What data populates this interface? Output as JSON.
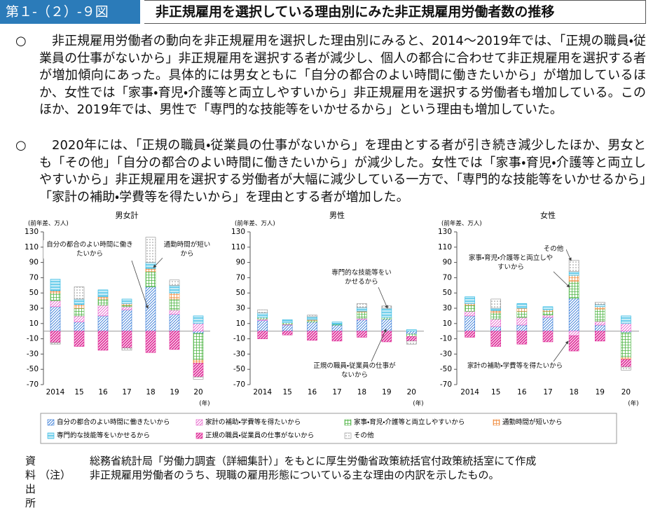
{
  "header": {
    "figure_number": "第１-（２）-９図",
    "title": "非正規雇用を選択している理由別にみた非正規雇用労働者数の推移"
  },
  "bullets": [
    {
      "marker": "○",
      "text": "非正規雇用労働者の動向を非正規雇用を選択した理由別にみると、2014～2019年では、「正規の職員・従業員の仕事がないから」非正規雇用を選択する者が減少し、個人の都合に合わせて非正規雇用を選択する者が増加傾向にあった。具体的には男女ともに「自分の都合のよい時間に働きたいから」が増加しているほか、女性では「家事・育児・介護等と両立しやすいから」非正規雇用を選択する労働者も増加している。このほか、2019年では、男性で「専門的な技能等をいかせるから」という理由も増加していた。"
    },
    {
      "marker": "○",
      "text": "2020年には、「正規の職員・従業員の仕事がないから」を理由とする者が引き続き減少したほか、男女とも「その他」「自分の都合のよい時間に働きたいから」が減少した。女性では「家事・育児・介護等と両立しやすいから」非正規雇用を選択する労働者が大幅に減少している一方で、「専門的な技能等をいかせるから」「家計の補助・学費等を得たいから」を理由とする者が増加した。"
    }
  ],
  "chart_data": [
    {
      "type": "bar",
      "stacked": true,
      "title": "男女計",
      "ylabel": "(前年差、万人)",
      "xlabel": "(年)",
      "categories": [
        "2014",
        "15",
        "16",
        "17",
        "18",
        "19",
        "20"
      ],
      "ylim": [
        -70,
        130
      ],
      "yticks": [
        130,
        110,
        90,
        70,
        50,
        30,
        10,
        -10,
        -30,
        -50,
        -70
      ],
      "annotations": [
        "自分の都合のよい時間に働きたいから",
        "通勤時間が短いから"
      ],
      "series": [
        {
          "name": "自分の都合のよい時間に働きたいから",
          "color": "#2e75d6",
          "pattern": "diag",
          "values": [
            32,
            12,
            20,
            28,
            58,
            22,
            -3
          ]
        },
        {
          "name": "家計の補助・学費等を得たいから",
          "color": "#e65ac8",
          "pattern": "diag",
          "values": [
            8,
            8,
            14,
            4,
            0,
            6,
            10
          ]
        },
        {
          "name": "家事・育児・介護等と両立しやすいから",
          "color": "#4fb545",
          "pattern": "grid",
          "values": [
            10,
            10,
            8,
            2,
            20,
            14,
            -35
          ]
        },
        {
          "name": "通勤時間が短いから",
          "color": "#f08a3c",
          "pattern": "grid",
          "values": [
            3,
            5,
            3,
            2,
            4,
            8,
            -4
          ]
        },
        {
          "name": "専門的な技能等をいかせるから",
          "color": "#1fb3e0",
          "pattern": "hline",
          "values": [
            15,
            7,
            9,
            6,
            8,
            10,
            10
          ]
        },
        {
          "name": "正規の職員・従業員の仕事がないから",
          "color": "#e0309a",
          "pattern": "stripe",
          "values": [
            -15,
            -20,
            -25,
            -22,
            -28,
            -24,
            -18
          ]
        },
        {
          "name": "その他",
          "color": "#8c8c8c",
          "pattern": "dots",
          "values": [
            -2,
            16,
            0,
            -3,
            33,
            7,
            -3
          ]
        }
      ]
    },
    {
      "type": "bar",
      "stacked": true,
      "title": "男性",
      "ylabel": "(前年差、万人)",
      "xlabel": "(年)",
      "categories": [
        "2014",
        "15",
        "16",
        "17",
        "18",
        "19",
        "20"
      ],
      "ylim": [
        -70,
        130
      ],
      "yticks": [
        130,
        110,
        90,
        70,
        50,
        30,
        10,
        -10,
        -30,
        -50,
        -70
      ],
      "annotations": [
        "専門的な技能等をいかせるから",
        "正規の職員・従業員の仕事がないから"
      ],
      "series": [
        {
          "values": [
            14,
            8,
            12,
            8,
            15,
            16,
            -4
          ]
        },
        {
          "values": [
            2,
            1,
            0,
            0,
            2,
            0,
            0
          ]
        },
        {
          "values": [
            2,
            2,
            2,
            1,
            8,
            2,
            -3
          ]
        },
        {
          "values": [
            0,
            0,
            1,
            0,
            1,
            0,
            0
          ]
        },
        {
          "values": [
            6,
            4,
            4,
            3,
            5,
            12,
            2
          ]
        },
        {
          "values": [
            -10,
            -5,
            -12,
            -13,
            -8,
            -14,
            -6
          ]
        },
        {
          "values": [
            4,
            0,
            2,
            0,
            5,
            3,
            -4
          ]
        }
      ]
    },
    {
      "type": "bar",
      "stacked": true,
      "title": "女性",
      "ylabel": "(前年差、万人)",
      "xlabel": "(年)",
      "categories": [
        "2014",
        "15",
        "16",
        "17",
        "18",
        "19",
        "20"
      ],
      "ylim": [
        -70,
        130
      ],
      "yticks": [
        130,
        110,
        90,
        70,
        50,
        30,
        10,
        -10,
        -30,
        -50,
        -70
      ],
      "annotations": [
        "その他",
        "家事・育児・介護等と両立しやすいから",
        "家計の補助・学費等を得たいから"
      ],
      "series": [
        {
          "values": [
            20,
            6,
            8,
            18,
            43,
            8,
            -2
          ]
        },
        {
          "values": [
            6,
            10,
            10,
            3,
            -6,
            5,
            10
          ]
        },
        {
          "values": [
            8,
            8,
            8,
            5,
            22,
            16,
            -33
          ]
        },
        {
          "values": [
            2,
            3,
            4,
            2,
            8,
            3,
            -2
          ]
        },
        {
          "values": [
            9,
            3,
            6,
            4,
            5,
            3,
            10
          ]
        },
        {
          "values": [
            -8,
            -20,
            -17,
            -14,
            -20,
            -13,
            -10
          ]
        },
        {
          "values": [
            0,
            12,
            0,
            0,
            15,
            3,
            -4
          ]
        }
      ]
    }
  ],
  "source": {
    "label": "資料出所",
    "text": "総務省統計局「労働力調査（詳細集計）」をもとに厚生労働省政策統括官付政策統括室にて作成"
  },
  "note": {
    "label": "（注）",
    "text": "非正規雇用労働者のうち、現職の雇用形態についている主な理由の内訳を示したもの。"
  }
}
